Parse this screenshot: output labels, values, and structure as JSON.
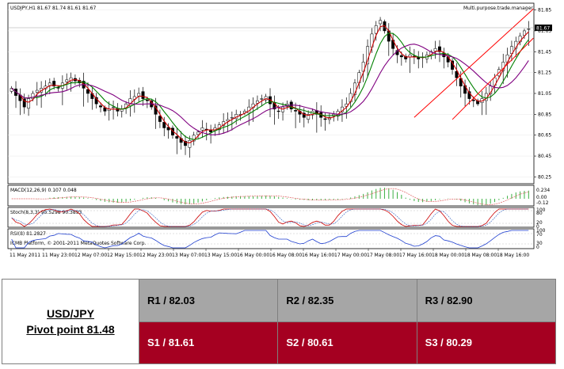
{
  "chart_data": [
    {
      "type": "candlestick",
      "title": "USDJPY,H1  81.67 81.74 81.61 81.67",
      "indicator_label": "Multi.purpose.trade.manager",
      "current_price_label": "81.67",
      "ylim": [
        80.2,
        81.9
      ],
      "y_ticks": [
        "81.85",
        "81.65",
        "81.45",
        "81.25",
        "81.05",
        "80.85",
        "80.65",
        "80.45",
        "80.25"
      ],
      "x_ticks": [
        "11 May 2011",
        "11 May 23:00",
        "12 May 07:00",
        "12 May 15:00",
        "12 May 23:00",
        "13 May 07:00",
        "13 May 15:00",
        "16 May 00:00",
        "16 May 08:00",
        "16 May 16:00",
        "17 May 00:00",
        "17 May 08:00",
        "17 May 16:00",
        "18 May 00:00",
        "18 May 08:00",
        "18 May 16:00"
      ],
      "close": [
        81.1,
        81.03,
        80.98,
        80.92,
        81.0,
        81.05,
        81.08,
        81.1,
        81.12,
        81.15,
        81.12,
        81.1,
        81.15,
        81.18,
        81.2,
        81.17,
        81.15,
        81.1,
        81.05,
        81.0,
        80.95,
        80.92,
        80.88,
        80.9,
        80.92,
        80.88,
        80.9,
        80.95,
        81.0,
        81.02,
        81.05,
        81.0,
        80.98,
        80.92,
        80.85,
        80.78,
        80.72,
        80.7,
        80.65,
        80.62,
        80.58,
        80.55,
        80.6,
        80.65,
        80.68,
        80.72,
        80.7,
        80.68,
        80.72,
        80.75,
        80.78,
        80.8,
        80.82,
        80.85,
        80.85,
        80.88,
        80.92,
        80.95,
        80.98,
        81.0,
        81.02,
        80.95,
        80.9,
        80.88,
        80.92,
        80.95,
        80.9,
        80.88,
        80.85,
        80.82,
        80.85,
        80.88,
        80.85,
        80.82,
        80.8,
        80.82,
        80.85,
        80.88,
        80.92,
        80.95,
        81.05,
        81.15,
        81.25,
        81.35,
        81.5,
        81.62,
        81.7,
        81.75,
        81.65,
        81.55,
        81.48,
        81.42,
        81.4,
        81.38,
        81.42,
        81.4,
        81.38,
        81.4,
        81.42,
        81.45,
        81.48,
        81.45,
        81.4,
        81.35,
        81.28,
        81.2,
        81.12,
        81.05,
        81.0,
        80.98,
        80.95,
        81.0,
        81.05,
        81.12,
        81.2,
        81.28,
        81.35,
        81.42,
        81.5,
        81.55,
        81.6,
        81.65,
        81.67
      ],
      "sub_panels": [
        {
          "label": "MACD(12,26,9) 0.107 0.048",
          "ticks": [
            "0.234",
            "0.00",
            "-0.12"
          ]
        },
        {
          "label": "Stoch(8,3,3) 95.5298 90.3893",
          "ticks": [
            "100",
            "80",
            "20",
            "0"
          ]
        },
        {
          "label": "RSI(8) 81.2827",
          "ticks": [
            "100",
            "70",
            "30",
            "0"
          ],
          "footer": "ICMB Platform, © 2001-2011 MetaQuotes Software Corp."
        }
      ],
      "colors": {
        "price_up": "#ffffff",
        "price_down": "#000000",
        "ma_fast": "#cc0000",
        "ma_mid": "#008000",
        "ma_slow": "#800080",
        "channel": "#ff0000",
        "macd": "#3cb043",
        "signal": "#e06060",
        "stoch_main": "#cc0000",
        "stoch_signal": "#3060c0",
        "rsi": "#1f3fcf"
      }
    }
  ],
  "pivot": {
    "pair": "USD/JPY",
    "pivot_point": "Pivot point 81.48",
    "resistance": [
      "R1 / 82.03",
      "R2 / 82.35",
      "R3 / 82.90"
    ],
    "support": [
      "S1 / 81.61",
      "S2 / 80.61",
      "S3 / 80.29"
    ]
  }
}
